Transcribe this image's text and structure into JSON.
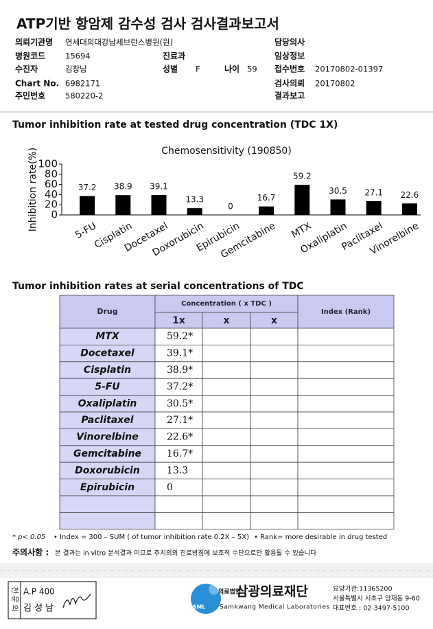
{
  "header": {
    "title": "ATP기반 항암제 감수성 검사 검사결과보고서"
  },
  "info": {
    "left": [
      {
        "label": "의뢰기관명",
        "value": "연세대의대강남세브란스병원(원)"
      },
      {
        "label": "병원코드",
        "value": "15694"
      },
      {
        "label": "수진자",
        "value": "김창남"
      },
      {
        "label": "Chart No.",
        "value": "6982171"
      },
      {
        "label": "주민번호",
        "value": "580220-2"
      }
    ],
    "middle": [
      {
        "label": "진료과"
      },
      {
        "label": "성별",
        "value": "F"
      },
      {
        "label": "나이",
        "value": "59"
      }
    ],
    "right": [
      {
        "label": "담당의사"
      },
      {
        "label": "임상정보"
      },
      {
        "label": "접수번호",
        "value": "20170802-01397"
      },
      {
        "label": "검사의뢰",
        "value": "20170802"
      },
      {
        "label": "결과보고"
      }
    ]
  },
  "section1": "Tumor inhibition rate at tested drug concentration (TDC 1X)",
  "chart_data": {
    "type": "bar",
    "title": "Chemosensitivity (190850)",
    "y_label": "Inhibition rate(%)",
    "categories": [
      "5-FU",
      "Cisplatin",
      "Docetaxel",
      "Doxorubicin",
      "Epirubicin",
      "Gemcitabine",
      "MTX",
      "Oxaliplatin",
      "Paclitaxel",
      "Vinorelbine"
    ],
    "values": [
      37.2,
      38.9,
      39.1,
      13.3,
      0,
      16.7,
      59.2,
      30.5,
      27.1,
      22.6
    ],
    "color": "#000000",
    "ylim": [
      0,
      100
    ],
    "yticks": [
      0,
      20,
      40,
      60,
      80,
      100
    ]
  },
  "section2": "Tumor inhibition rates at serial concentrations of TDC",
  "table": {
    "header": {
      "drug": "Drug",
      "concentration": "Concentration ( x TDC )",
      "columns": [
        "1x",
        "x",
        "x"
      ],
      "index": "Index (Rank)"
    },
    "rows": [
      [
        "MTX",
        "59.2*"
      ],
      [
        "Docetaxel",
        "39.1*"
      ],
      [
        "Cisplatin",
        "38.9*"
      ],
      [
        "5-FU",
        "37.2*"
      ],
      [
        "Oxaliplatin",
        "30.5*"
      ],
      [
        "Paclitaxel",
        "27.1*"
      ],
      [
        "Vinorelbine",
        "22.6*"
      ],
      [
        "Gemcitabine",
        "16.7*"
      ],
      [
        "Doxorubicin",
        "13.3"
      ],
      [
        "Epirubicin",
        "0"
      ]
    ]
  },
  "notes": [
    "* p< 0.05",
    "• Index = 300 – SUM ( of tumor inhibition rate 0.2X – 5X)",
    "• Rank= more desirable in drug tested"
  ],
  "caution": {
    "label": "주의사항 :",
    "text": "본 결과는 in vitro 분석결과 이므로 추치의의 진료방침에 보조적 수단으로만 활용될 수 있습니다"
  },
  "footer": {
    "stamp": "전문의",
    "license": "A.P 400",
    "doctor": "김 성 남",
    "logo": "SML",
    "corp": "의료법인",
    "org": "삼광의료재단",
    "org_en": "Samkwang Medical Laboratories",
    "contact": [
      "요양기관:11365200",
      "서울특별시 서초구 양재동 9-60",
      "대표번호 : 02-3497-5100"
    ]
  }
}
